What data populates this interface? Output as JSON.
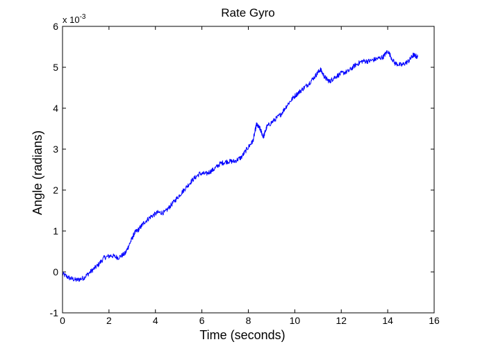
{
  "chart_data": {
    "type": "line",
    "title": "Rate Gyro",
    "xlabel": "Time (seconds)",
    "ylabel": "Angle (radians)",
    "xlim": [
      0,
      16
    ],
    "ylim": [
      -1,
      6
    ],
    "y_scale_multiplier": {
      "base": "x 10",
      "exponent": "-3"
    },
    "x_ticks": [
      0,
      2,
      4,
      6,
      8,
      10,
      12,
      14,
      16
    ],
    "y_ticks": [
      -1,
      0,
      1,
      2,
      3,
      4,
      5,
      6
    ],
    "x_tick_labels": [
      "0",
      "2",
      "4",
      "6",
      "8",
      "10",
      "12",
      "14",
      "16"
    ],
    "y_tick_labels": [
      "-1",
      "0",
      "1",
      "2",
      "3",
      "4",
      "5",
      "6"
    ],
    "grid": false,
    "box": true,
    "series": [
      {
        "color": "#0000ff",
        "x": [
          0,
          0.3,
          0.6,
          0.9,
          1.2,
          1.5,
          1.8,
          2.1,
          2.4,
          2.7,
          2.9,
          3.1,
          3.3,
          3.5,
          3.8,
          4.1,
          4.4,
          4.7,
          5.0,
          5.3,
          5.6,
          5.9,
          6.2,
          6.5,
          6.8,
          7.1,
          7.4,
          7.7,
          8.0,
          8.2,
          8.35,
          8.5,
          8.65,
          8.8,
          9.1,
          9.4,
          9.7,
          10.0,
          10.3,
          10.6,
          10.9,
          11.1,
          11.3,
          11.5,
          11.7,
          12.0,
          12.3,
          12.6,
          12.9,
          13.2,
          13.5,
          13.8,
          14.0,
          14.3,
          14.6,
          14.9,
          15.1,
          15.3
        ],
        "y": [
          -0.05,
          -0.15,
          -0.2,
          -0.15,
          0.0,
          0.15,
          0.35,
          0.4,
          0.35,
          0.45,
          0.7,
          0.95,
          1.05,
          1.2,
          1.35,
          1.45,
          1.45,
          1.65,
          1.85,
          2.05,
          2.25,
          2.4,
          2.4,
          2.5,
          2.65,
          2.7,
          2.7,
          2.8,
          3.05,
          3.2,
          3.6,
          3.5,
          3.3,
          3.55,
          3.7,
          3.85,
          4.1,
          4.3,
          4.45,
          4.6,
          4.8,
          4.95,
          4.75,
          4.65,
          4.75,
          4.85,
          4.9,
          5.05,
          5.15,
          5.15,
          5.2,
          5.25,
          5.4,
          5.1,
          5.05,
          5.15,
          5.3,
          5.25
        ]
      }
    ]
  }
}
